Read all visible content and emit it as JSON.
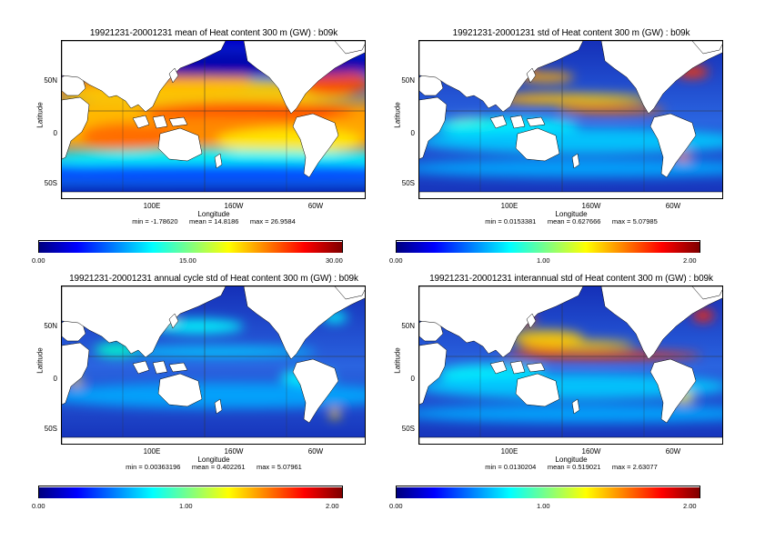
{
  "panels": [
    {
      "title": "19921231-20001231  mean of Heat content 300 m (GW) : b09k",
      "ylabel": "Latitude",
      "xlabel": "Longitude",
      "yticks": [
        "50N",
        "0",
        "50S"
      ],
      "xticks": [
        "100E",
        "160W",
        "60W"
      ],
      "stats": "min = -1.78620      mean = 14.8186      max = 26.9584",
      "cbar_ticks": [
        "0.00",
        "15.00",
        "30.00"
      ],
      "field": "mean"
    },
    {
      "title": "19921231-20001231  std of Heat content 300 m (GW) : b09k",
      "ylabel": "Latitude",
      "xlabel": "Longitude",
      "yticks": [
        "50N",
        "0",
        "50S"
      ],
      "xticks": [
        "100E",
        "160W",
        "60W"
      ],
      "stats": "min = 0.0153381      mean = 0.627666      max = 5.07985",
      "cbar_ticks": [
        "0.00",
        "1.00",
        "2.00"
      ],
      "field": "std"
    },
    {
      "title": "19921231-20001231  annual cycle std of Heat content 300 m (GW) : b09k",
      "ylabel": "Latitude",
      "xlabel": "Longitude",
      "yticks": [
        "50N",
        "0",
        "50S"
      ],
      "xticks": [
        "100E",
        "160W",
        "60W"
      ],
      "stats": "min = 0.00363196      mean = 0.402261      max = 5.07961",
      "cbar_ticks": [
        "0.00",
        "1.00",
        "2.00"
      ],
      "field": "annual"
    },
    {
      "title": "19921231-20001231  interannual std of Heat content 300 m (GW) : b09k",
      "ylabel": "Latitude",
      "xlabel": "Longitude",
      "yticks": [
        "50N",
        "0",
        "50S"
      ],
      "xticks": [
        "100E",
        "160W",
        "60W"
      ],
      "stats": "min = 0.0130204      mean = 0.519021      max = 2.63077",
      "cbar_ticks": [
        "0.00",
        "1.00",
        "2.00"
      ],
      "field": "interannual"
    }
  ],
  "colormap": [
    "#00007f",
    "#0000ff",
    "#0080ff",
    "#00ffff",
    "#80ff80",
    "#ffff00",
    "#ff8000",
    "#ff0000",
    "#7f0000"
  ],
  "land_color": "#ffffff",
  "ocean_low_color": "#1e2fb8"
}
